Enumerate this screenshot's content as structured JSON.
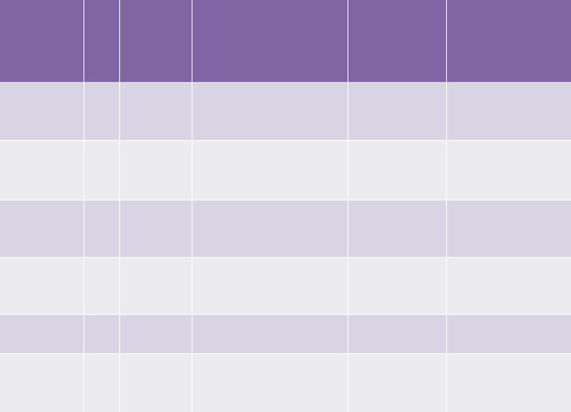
{
  "colors": {
    "header": "#7f65a4",
    "band_dark": "#d8d4e4",
    "band_light": "#ecebf0",
    "gridline": "#ffffff"
  },
  "table": {
    "headers": [
      "",
      "",
      "",
      "",
      "",
      ""
    ],
    "rows": [
      [
        "",
        "",
        "",
        "",
        "",
        ""
      ],
      [
        "",
        "",
        "",
        "",
        "",
        ""
      ],
      [
        "",
        "",
        "",
        "",
        "",
        ""
      ],
      [
        "",
        "",
        "",
        "",
        "",
        ""
      ],
      [
        "",
        "",
        "",
        "",
        "",
        ""
      ],
      [
        "",
        "",
        "",
        "",
        "",
        ""
      ]
    ]
  }
}
